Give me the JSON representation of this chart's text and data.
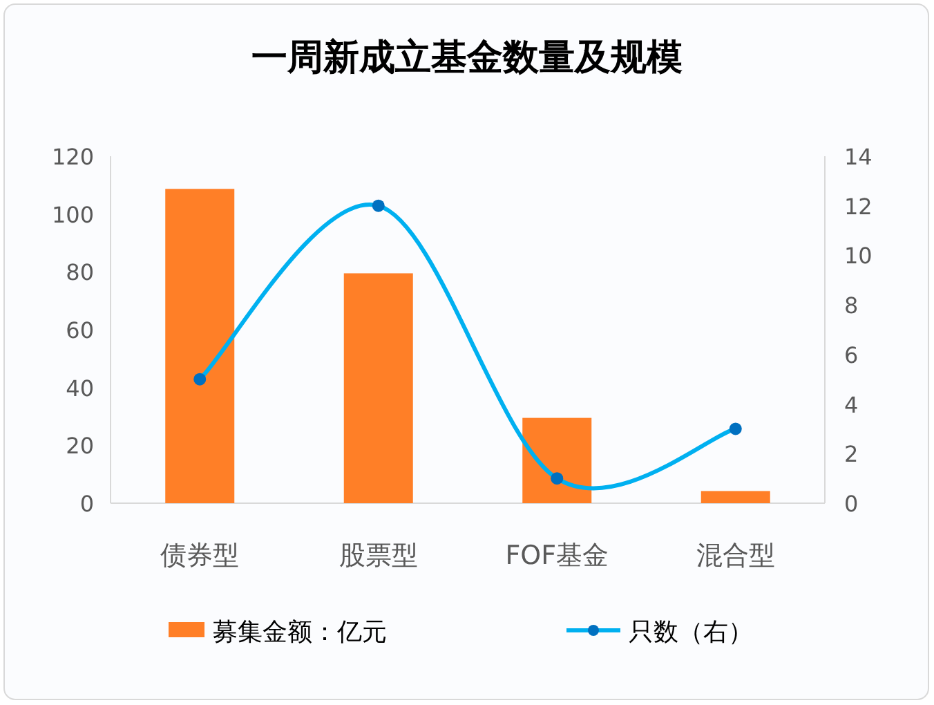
{
  "chart_data": {
    "type": "bar",
    "title": "一周新成立基金数量及规模",
    "categories": [
      "债券型",
      "股票型",
      "FOF基金",
      "混合型"
    ],
    "series": [
      {
        "name": "募集金额：亿元",
        "color": "#ff7f27",
        "values": [
          108.7,
          79.5,
          29.5,
          4.2
        ]
      },
      {
        "name": "只数（右）",
        "type": "line",
        "axis": "y2",
        "color": "#00b0f0",
        "marker": "circle",
        "values": [
          5,
          12,
          1,
          3
        ]
      }
    ],
    "ylim": [
      0,
      120
    ],
    "yticks": [
      0,
      20,
      40,
      60,
      80,
      100,
      120
    ],
    "y2lim": [
      0,
      14
    ],
    "y2ticks": [
      0,
      2,
      4,
      6,
      8,
      10,
      12,
      14
    ],
    "grid": false,
    "legend": "bottom"
  }
}
